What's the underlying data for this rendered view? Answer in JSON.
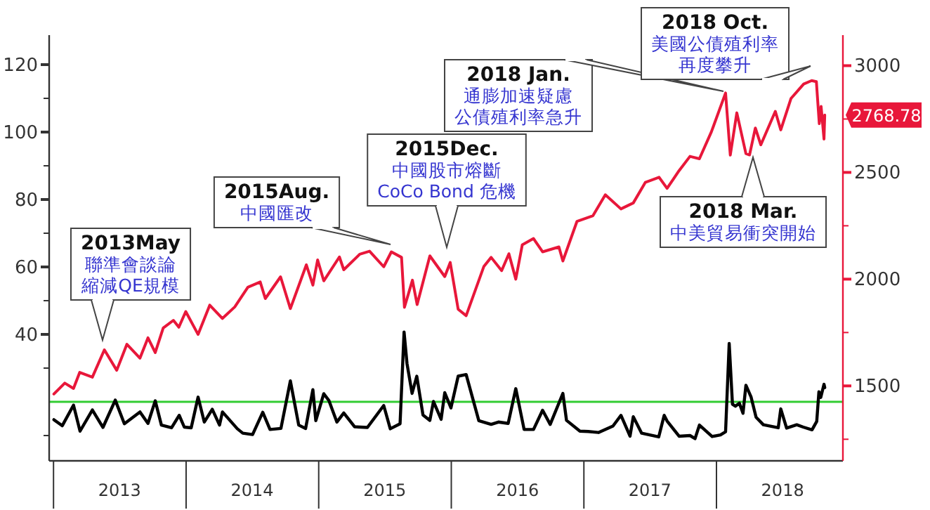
{
  "chart_data": {
    "type": "line",
    "xlim": [
      "2012-12-20",
      "2018-12-15"
    ],
    "xticks": [
      {
        "value": "2013-01-01",
        "label": null
      },
      {
        "value": "2013-07-02",
        "label": "2013"
      },
      {
        "value": "2014-01-01",
        "label": null
      },
      {
        "value": "2014-07-02",
        "label": "2014"
      },
      {
        "value": "2015-01-01",
        "label": null
      },
      {
        "value": "2015-07-02",
        "label": "2015"
      },
      {
        "value": "2016-01-01",
        "label": null
      },
      {
        "value": "2016-07-02",
        "label": "2016"
      },
      {
        "value": "2017-01-01",
        "label": null
      },
      {
        "value": "2017-07-02",
        "label": "2017"
      },
      {
        "value": "2018-01-01",
        "label": null
      },
      {
        "value": "2018-07-02",
        "label": "2018"
      }
    ],
    "ylim": [
      2.5,
      128.75
    ],
    "yticks": [
      {
        "value": 10,
        "label": null
      },
      {
        "value": 30,
        "label": null
      },
      40,
      {
        "value": 50,
        "label": null
      },
      60,
      {
        "value": 70,
        "label": null
      },
      80,
      {
        "value": 90,
        "label": null
      },
      100,
      {
        "value": 110,
        "label": null
      },
      120
    ],
    "y2lim": [
      1149,
      3143
    ],
    "y2ticks": [
      {
        "value": 1250,
        "label": null
      },
      1500,
      {
        "value": 1750,
        "label": null
      },
      2000,
      {
        "value": 2250,
        "label": null
      },
      2500,
      {
        "value": 2750,
        "label": null
      },
      3000
    ],
    "grid": false,
    "marker": "none",
    "line_style": "solid",
    "ref_lines": [
      {
        "axis": "y",
        "value": 20,
        "label": null,
        "color": "#33cc33"
      }
    ],
    "series": [
      {
        "color": "#e8173a",
        "axis": "y2",
        "x": [
          "2013-01-02",
          "2013-02-01",
          "2013-02-25",
          "2013-03-14",
          "2013-04-18",
          "2013-05-21",
          "2013-06-24",
          "2013-07-22",
          "2013-08-27",
          "2013-09-18",
          "2013-10-08",
          "2013-10-30",
          "2013-11-27",
          "2013-12-12",
          "2013-12-31",
          "2014-02-03",
          "2014-03-07",
          "2014-04-11",
          "2014-05-15",
          "2014-06-20",
          "2014-07-24",
          "2014-08-07",
          "2014-09-18",
          "2014-10-15",
          "2014-11-28",
          "2014-12-16",
          "2014-12-29",
          "2015-01-15",
          "2015-02-27",
          "2015-03-11",
          "2015-04-24",
          "2015-05-21",
          "2015-06-29",
          "2015-07-20",
          "2015-08-17",
          "2015-08-25",
          "2015-09-16",
          "2015-09-29",
          "2015-11-03",
          "2015-12-14",
          "2015-12-29",
          "2016-01-20",
          "2016-02-11",
          "2016-03-31",
          "2016-04-20",
          "2016-05-19",
          "2016-06-08",
          "2016-06-27",
          "2016-07-15",
          "2016-08-15",
          "2016-09-09",
          "2016-10-24",
          "2016-11-04",
          "2016-12-13",
          "2017-01-26",
          "2017-03-01",
          "2017-04-13",
          "2017-05-17",
          "2017-06-19",
          "2017-07-27",
          "2017-08-18",
          "2017-09-20",
          "2017-10-20",
          "2017-11-15",
          "2017-12-18",
          "2018-01-26",
          "2018-02-08",
          "2018-02-26",
          "2018-03-23",
          "2018-04-02",
          "2018-04-18",
          "2018-05-03",
          "2018-06-12",
          "2018-06-27",
          "2018-07-25",
          "2018-08-29",
          "2018-09-20",
          "2018-10-03",
          "2018-10-11",
          "2018-10-16",
          "2018-10-24",
          "2018-10-26"
        ],
        "values": [
          1462,
          1513,
          1488,
          1563,
          1541,
          1669,
          1573,
          1695,
          1630,
          1725,
          1656,
          1771,
          1807,
          1775,
          1848,
          1741,
          1878,
          1816,
          1870,
          1962,
          1987,
          1909,
          2011,
          1862,
          2067,
          1972,
          2090,
          1992,
          2104,
          2044,
          2117,
          2131,
          2058,
          2128,
          2102,
          1868,
          1995,
          1881,
          2109,
          2012,
          2078,
          1859,
          1829,
          2060,
          2102,
          2040,
          2119,
          2000,
          2161,
          2190,
          2128,
          2151,
          2085,
          2271,
          2297,
          2395,
          2329,
          2357,
          2453,
          2477,
          2425,
          2508,
          2575,
          2564,
          2690,
          2872,
          2581,
          2779,
          2588,
          2582,
          2708,
          2629,
          2786,
          2699,
          2846,
          2914,
          2930,
          2925,
          2728,
          2809,
          2656,
          2768.78
        ],
        "value_labels": [
          null,
          null,
          null,
          null,
          null,
          null,
          null,
          null,
          null,
          null,
          null,
          null,
          null,
          null,
          null,
          null,
          null,
          null,
          null,
          null,
          null,
          null,
          null,
          null,
          null,
          null,
          null,
          null,
          null,
          null,
          null,
          null,
          null,
          null,
          null,
          null,
          null,
          null,
          null,
          null,
          null,
          null,
          null,
          null,
          null,
          null,
          null,
          null,
          null,
          null,
          null,
          null,
          null,
          null,
          null,
          null,
          null,
          null,
          null,
          null,
          null,
          null,
          null,
          null,
          null,
          null,
          null,
          null,
          null,
          null,
          null,
          null,
          null,
          null,
          null,
          null,
          null,
          null,
          null,
          null,
          null,
          "2768.78"
        ]
      },
      {
        "color": "#000000",
        "axis": "y",
        "x": [
          "2013-01-02",
          "2013-01-25",
          "2013-02-25",
          "2013-03-15",
          "2013-04-18",
          "2013-05-17",
          "2013-06-20",
          "2013-07-15",
          "2013-08-27",
          "2013-09-18",
          "2013-10-08",
          "2013-10-25",
          "2013-11-22",
          "2013-12-13",
          "2013-12-27",
          "2014-01-15",
          "2014-02-03",
          "2014-02-20",
          "2014-03-14",
          "2014-04-03",
          "2014-04-11",
          "2014-05-22",
          "2014-06-06",
          "2014-07-03",
          "2014-07-31",
          "2014-08-20",
          "2014-09-19",
          "2014-10-15",
          "2014-11-07",
          "2014-11-26",
          "2014-12-16",
          "2014-12-24",
          "2015-01-15",
          "2015-01-29",
          "2015-02-20",
          "2015-03-11",
          "2015-04-10",
          "2015-05-15",
          "2015-06-29",
          "2015-07-17",
          "2015-08-13",
          "2015-08-24",
          "2015-09-01",
          "2015-09-15",
          "2015-09-28",
          "2015-10-15",
          "2015-11-03",
          "2015-11-13",
          "2015-12-04",
          "2015-12-14",
          "2015-12-31",
          "2016-01-20",
          "2016-02-11",
          "2016-03-17",
          "2016-04-20",
          "2016-05-10",
          "2016-06-06",
          "2016-06-27",
          "2016-07-20",
          "2016-08-15",
          "2016-09-09",
          "2016-09-30",
          "2016-11-04",
          "2016-11-14",
          "2016-12-21",
          "2017-01-13",
          "2017-02-10",
          "2017-03-22",
          "2017-04-13",
          "2017-05-08",
          "2017-05-17",
          "2017-06-09",
          "2017-07-26",
          "2017-08-10",
          "2017-08-18",
          "2017-09-20",
          "2017-10-20",
          "2017-11-03",
          "2017-11-15",
          "2017-12-20",
          "2018-01-12",
          "2018-01-26",
          "2018-02-05",
          "2018-02-14",
          "2018-02-22",
          "2018-03-05",
          "2018-03-15",
          "2018-03-23",
          "2018-04-06",
          "2018-04-20",
          "2018-05-10",
          "2018-06-20",
          "2018-06-27",
          "2018-07-13",
          "2018-08-10",
          "2018-08-28",
          "2018-09-21",
          "2018-10-04",
          "2018-10-10",
          "2018-10-15",
          "2018-10-24",
          "2018-10-26"
        ],
        "values": [
          14.7,
          12.9,
          19.0,
          11.3,
          17.6,
          12.4,
          20.5,
          13.5,
          17.0,
          13.6,
          20.3,
          13.1,
          12.3,
          16.0,
          12.5,
          12.3,
          21.4,
          14.0,
          17.8,
          13.1,
          17.0,
          12.0,
          10.7,
          10.3,
          16.9,
          11.8,
          12.1,
          26.2,
          13.1,
          12.1,
          23.6,
          14.4,
          22.4,
          20.4,
          14.0,
          16.7,
          12.6,
          12.4,
          18.9,
          12.0,
          13.5,
          40.7,
          31.4,
          22.5,
          27.6,
          16.1,
          14.5,
          20.1,
          14.8,
          22.7,
          18.2,
          27.6,
          28.1,
          14.4,
          13.3,
          14.0,
          13.6,
          23.9,
          11.8,
          11.8,
          17.5,
          13.3,
          22.5,
          14.5,
          11.3,
          11.2,
          10.9,
          12.8,
          16.0,
          9.8,
          15.6,
          10.7,
          9.6,
          16.0,
          14.3,
          9.8,
          10.0,
          9.1,
          13.1,
          9.7,
          10.2,
          11.1,
          37.3,
          19.3,
          18.7,
          19.6,
          16.6,
          24.9,
          21.5,
          15.4,
          13.2,
          12.3,
          17.9,
          12.2,
          13.2,
          12.5,
          11.7,
          14.2,
          23.0,
          21.3,
          25.2,
          24.2
        ]
      }
    ],
    "annotations": [
      "2013May\n聯準會談論縮減QE規模",
      "2015Aug.\n中國匯改",
      "2015Dec.\n中國股市熔斷CoCo Bond 危機",
      "2018 Jan.\n通膨加速疑慮公債殖利率急升",
      "2018 Oct.\n美國公債殖利率再度攀升",
      "2018 Mar.\n中美貿易衝突開始"
    ]
  }
}
